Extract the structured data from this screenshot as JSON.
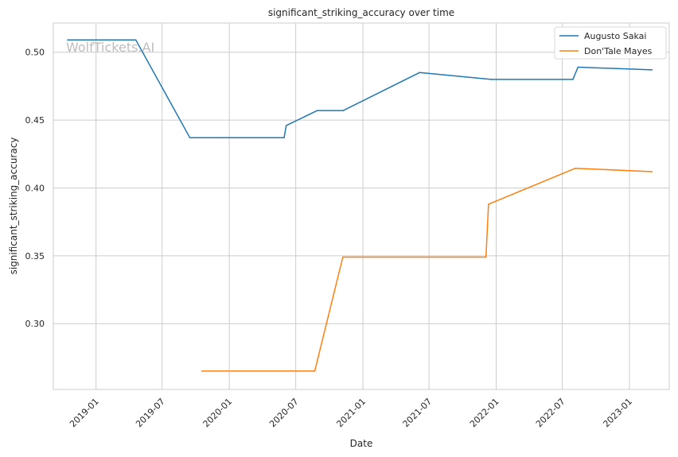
{
  "chart_data": {
    "type": "line",
    "title": "significant_striking_accuracy over time",
    "xlabel": "Date",
    "ylabel": "significant_striking_accuracy",
    "watermark": "WolfTickets.AI",
    "xlim": [
      "2018-09-06",
      "2023-04-20"
    ],
    "ylim": [
      0.2515,
      0.5215
    ],
    "x_ticks": [
      "2019-01",
      "2019-07",
      "2020-01",
      "2020-07",
      "2021-01",
      "2021-07",
      "2022-01",
      "2022-07",
      "2023-01"
    ],
    "y_ticks": [
      "0.30",
      "0.35",
      "0.40",
      "0.45",
      "0.50"
    ],
    "grid": true,
    "legend_position": "top-right",
    "series": [
      {
        "name": "Augusto Sakai",
        "color": "#1f77b4",
        "points": [
          [
            "2018-10-15",
            0.509
          ],
          [
            "2019-04-20",
            0.509
          ],
          [
            "2019-09-15",
            0.437
          ],
          [
            "2020-05-30",
            0.437
          ],
          [
            "2020-06-05",
            0.446
          ],
          [
            "2020-08-29",
            0.457
          ],
          [
            "2020-11-08",
            0.457
          ],
          [
            "2021-06-05",
            0.485
          ],
          [
            "2021-12-18",
            0.48
          ],
          [
            "2022-07-30",
            0.48
          ],
          [
            "2022-08-13",
            0.489
          ],
          [
            "2023-03-04",
            0.487
          ]
        ]
      },
      {
        "name": "Don'Tale Mayes",
        "color": "#ff7f0e",
        "points": [
          [
            "2019-10-18",
            0.265
          ],
          [
            "2020-08-22",
            0.265
          ],
          [
            "2020-11-07",
            0.349
          ],
          [
            "2021-12-04",
            0.349
          ],
          [
            "2021-12-11",
            0.388
          ],
          [
            "2022-08-06",
            0.4145
          ],
          [
            "2023-03-04",
            0.412
          ]
        ]
      }
    ]
  }
}
